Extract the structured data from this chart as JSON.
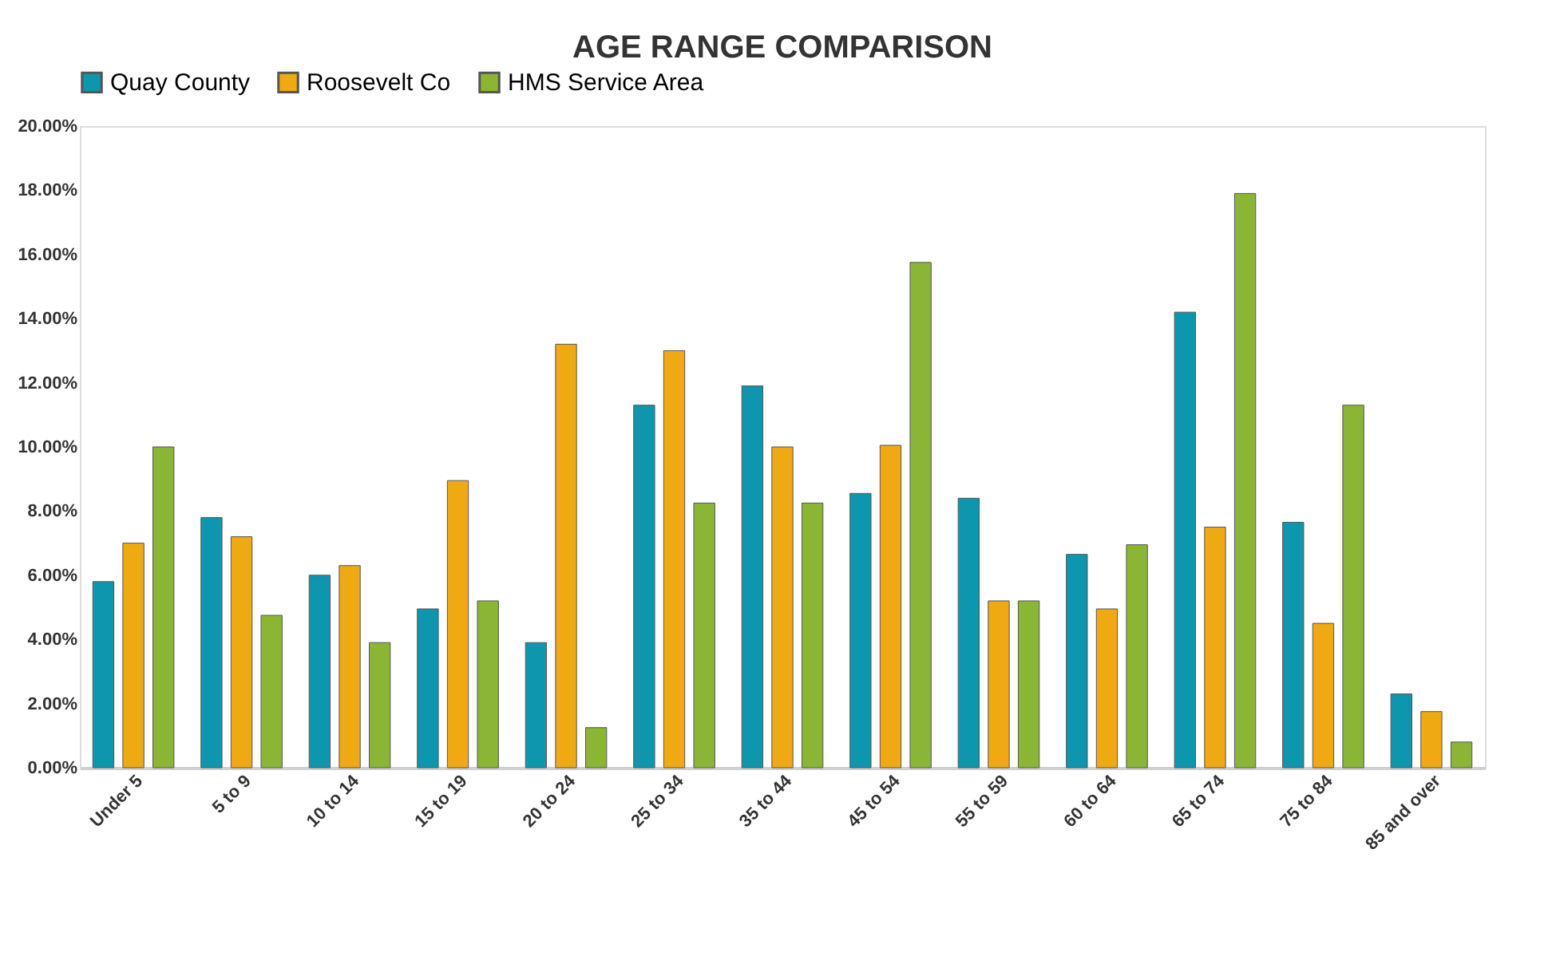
{
  "chart_data": {
    "type": "bar",
    "title": "AGE RANGE COMPARISON",
    "categories": [
      "Under 5",
      "5 to 9",
      "10 to 14",
      "15 to 19",
      "20 to 24",
      "25 to 34",
      "35 to 44",
      "45 to 54",
      "55 to 59",
      "60 to 64",
      "65 to 74",
      "75 to 84",
      "85 and over"
    ],
    "series": [
      {
        "name": "Quay County",
        "color": "#0e96ae",
        "values": [
          5.8,
          7.8,
          6.0,
          4.95,
          3.9,
          11.3,
          11.9,
          8.55,
          8.4,
          6.65,
          14.2,
          7.65,
          2.3
        ]
      },
      {
        "name": "Roosevelt Co",
        "color": "#efa912",
        "values": [
          7.0,
          7.2,
          6.3,
          8.95,
          13.2,
          13.0,
          10.0,
          10.05,
          5.2,
          4.95,
          7.5,
          4.5,
          1.75
        ]
      },
      {
        "name": "HMS Service Area",
        "color": "#8bb535",
        "values": [
          10.0,
          4.75,
          3.9,
          5.2,
          1.25,
          8.25,
          8.25,
          15.75,
          5.2,
          6.95,
          17.9,
          11.3,
          0.8
        ]
      }
    ],
    "ylim": [
      0,
      20
    ],
    "yticks": [
      {
        "value": 0,
        "label": "0.00%"
      },
      {
        "value": 2,
        "label": "2.00%"
      },
      {
        "value": 4,
        "label": "4.00%"
      },
      {
        "value": 6,
        "label": "6.00%"
      },
      {
        "value": 8,
        "label": "8.00%"
      },
      {
        "value": 10,
        "label": "10.00%"
      },
      {
        "value": 12,
        "label": "12.00%"
      },
      {
        "value": 14,
        "label": "14.00%"
      },
      {
        "value": 16,
        "label": "16.00%"
      },
      {
        "value": 18,
        "label": "18.00%"
      },
      {
        "value": 20,
        "label": "20.00%"
      }
    ],
    "grid": false,
    "legend": "top"
  }
}
